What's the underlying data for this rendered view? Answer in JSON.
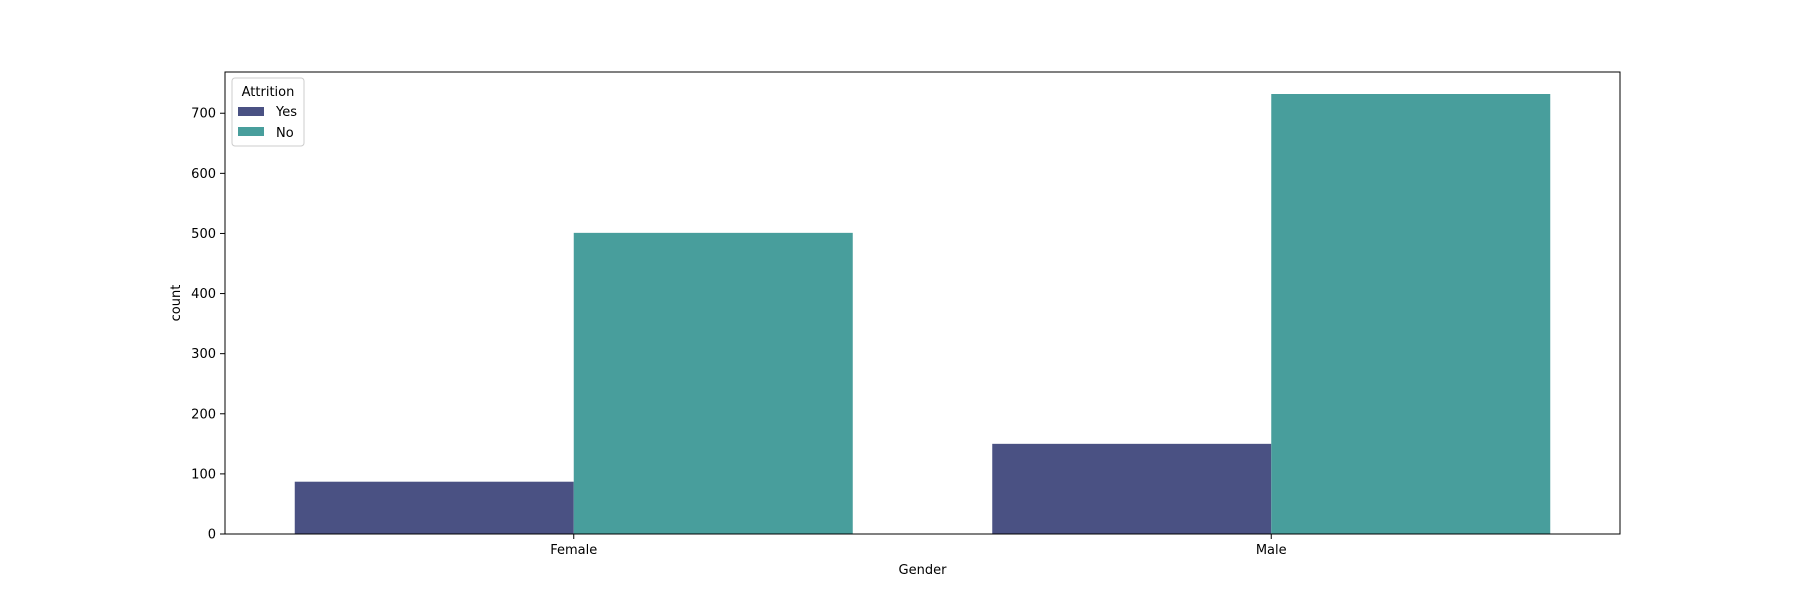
{
  "chart_data": {
    "type": "bar",
    "categories": [
      "Female",
      "Male"
    ],
    "series": [
      {
        "name": "Yes",
        "values": [
          87,
          150
        ],
        "color": "#4a5183"
      },
      {
        "name": "No",
        "values": [
          501,
          732
        ],
        "color": "#489e9c"
      }
    ],
    "xlabel": "Gender",
    "ylabel": "count",
    "ylim": [
      0,
      768.6
    ],
    "yticks": [
      0,
      100,
      200,
      300,
      400,
      500,
      600,
      700
    ],
    "legend": {
      "title": "Attrition",
      "placement": "top-left"
    },
    "grid": false
  }
}
